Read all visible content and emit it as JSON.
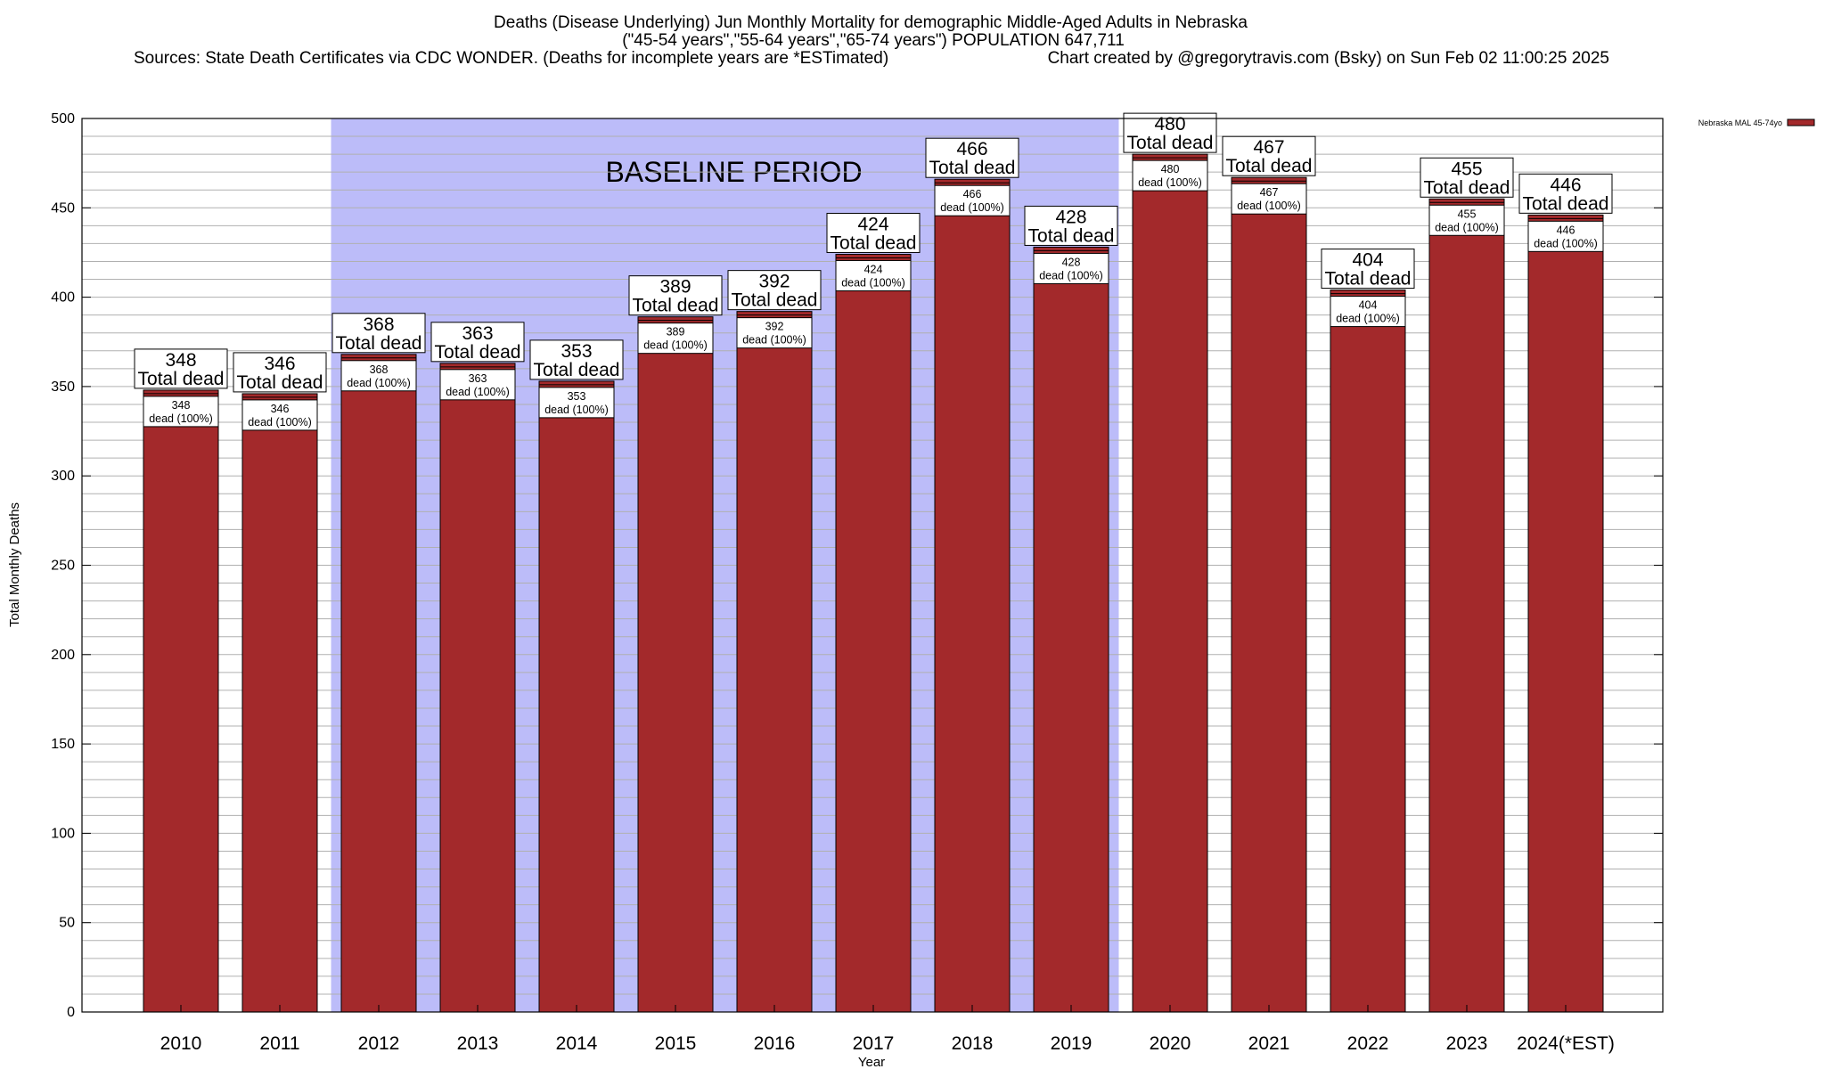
{
  "chart_data": {
    "type": "bar",
    "title_lines": [
      "Deaths (Disease Underlying) Jun Monthly Mortality for demographic Middle-Aged Adults in Nebraska",
      "(\"45-54 years\",\"55-64 years\",\"65-74 years\") POPULATION 647,711",
      "Sources: State Death Certificates via CDC WONDER. (Deaths for incomplete years are *ESTimated)",
      "Chart created by @gregorytravis.com (Bsky) on Sun Feb 02 11:00:25 2025"
    ],
    "xlabel": "Year",
    "ylabel": "Total Monthly Deaths",
    "ylim": [
      0,
      500
    ],
    "y_ticks": [
      0,
      50,
      100,
      150,
      200,
      250,
      300,
      350,
      400,
      450,
      500
    ],
    "grid": true,
    "legend_position": "top-right",
    "bar_color": "#a3292b",
    "baseline_color": "#bcbcf9",
    "series": [
      {
        "name": "Nebraska MAL 45-74yo",
        "values": [
          348,
          346,
          368,
          363,
          353,
          389,
          392,
          424,
          466,
          428,
          480,
          467,
          404,
          455,
          446
        ]
      }
    ],
    "categories": [
      "2010",
      "2011",
      "2012",
      "2013",
      "2014",
      "2015",
      "2016",
      "2017",
      "2018",
      "2019",
      "2020",
      "2021",
      "2022",
      "2023",
      "2024(*EST)"
    ],
    "total_label_suffix": "Total dead",
    "inner_label_suffix": "dead (100%)",
    "annotations": [
      {
        "text": "BASELINE PERIOD",
        "x_start": "2012",
        "x_end": "2019"
      }
    ]
  }
}
